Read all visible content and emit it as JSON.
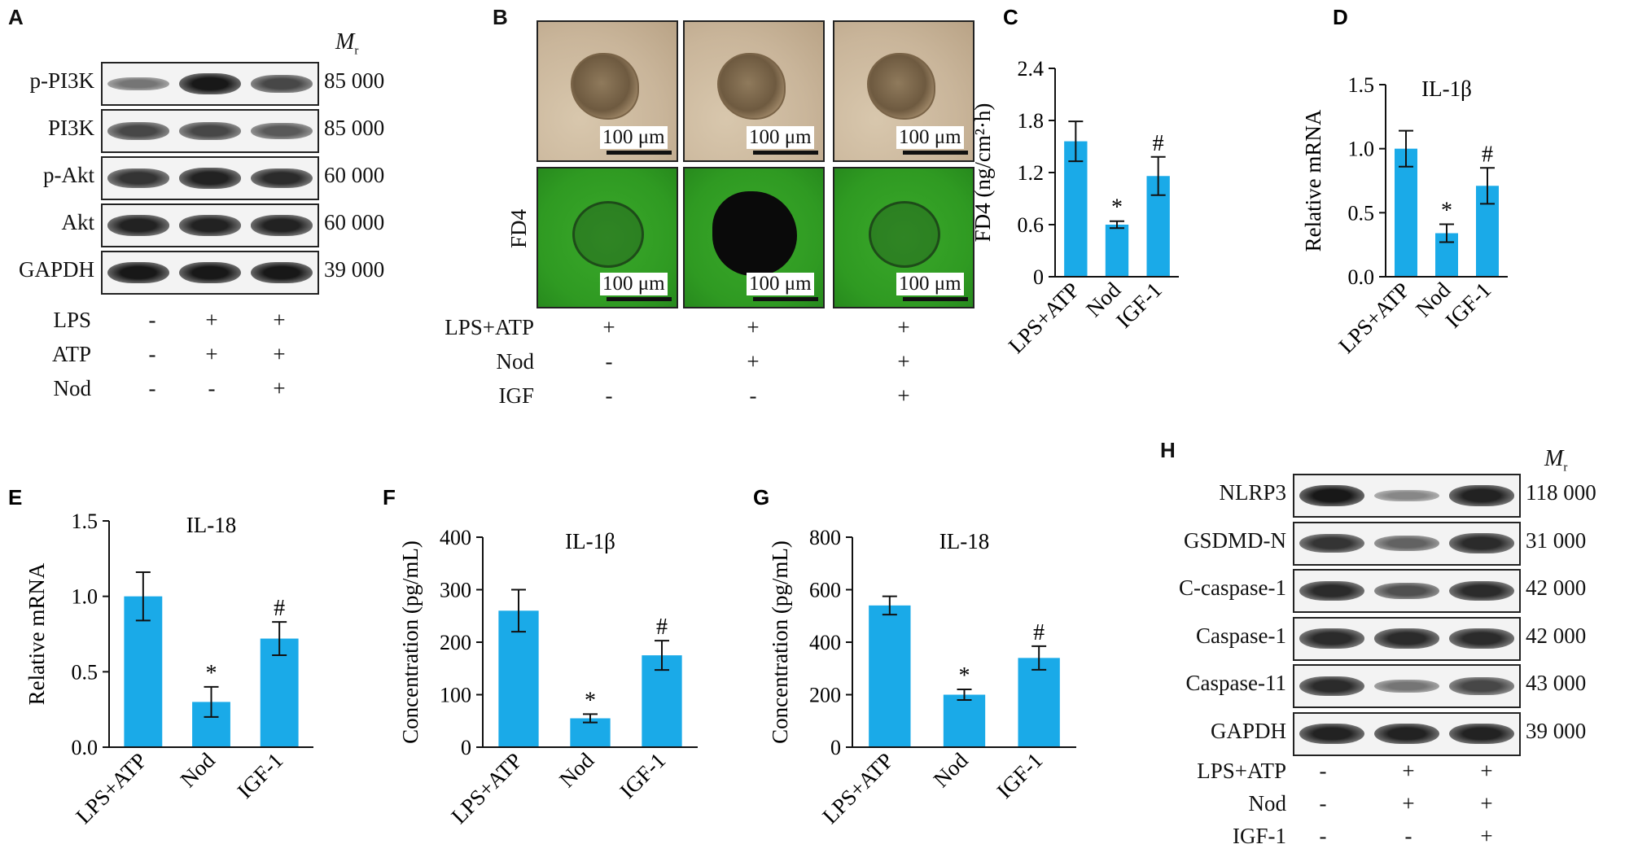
{
  "panels": {
    "A": {
      "letter": "A",
      "mr_label": "M",
      "mr_sub": "r",
      "blots": [
        {
          "label": "p-PI3K",
          "mw": "85 000",
          "intensity": [
            0.45,
            0.95,
            0.7
          ]
        },
        {
          "label": "PI3K",
          "mw": "85 000",
          "intensity": [
            0.7,
            0.7,
            0.6
          ]
        },
        {
          "label": "p-Akt",
          "mw": "60 000",
          "intensity": [
            0.8,
            0.9,
            0.85
          ]
        },
        {
          "label": "Akt",
          "mw": "60 000",
          "intensity": [
            0.9,
            0.9,
            0.9
          ]
        },
        {
          "label": "GAPDH",
          "mw": "39 000",
          "intensity": [
            0.95,
            0.95,
            0.95
          ]
        }
      ],
      "treatments": [
        {
          "label": "LPS",
          "signs": [
            "-",
            "+",
            "+"
          ]
        },
        {
          "label": "ATP",
          "signs": [
            "-",
            "+",
            "+"
          ]
        },
        {
          "label": "Nod",
          "signs": [
            "-",
            "-",
            "+"
          ]
        }
      ]
    },
    "B": {
      "letter": "B",
      "row_label": "FD4",
      "scale": "100 μm",
      "treatments": [
        {
          "label": "LPS+ATP",
          "signs": [
            "+",
            "+",
            "+"
          ]
        },
        {
          "label": "Nod",
          "signs": [
            "-",
            "+",
            "+"
          ]
        },
        {
          "label": "IGF",
          "signs": [
            "-",
            "-",
            "+"
          ]
        }
      ],
      "colors": {
        "brightfield": "#c9b59a",
        "fluorescence": "#2f9a22"
      }
    },
    "H": {
      "letter": "H",
      "mr_label": "M",
      "mr_sub": "r",
      "blots": [
        {
          "label": "NLRP3",
          "mw": "118 000",
          "intensity": [
            0.95,
            0.35,
            0.9
          ]
        },
        {
          "label": "GSDMD-N",
          "mw": "31 000",
          "intensity": [
            0.8,
            0.55,
            0.85
          ]
        },
        {
          "label": "C-caspase-1",
          "mw": "42 000",
          "intensity": [
            0.85,
            0.65,
            0.85
          ]
        },
        {
          "label": "Caspase-1",
          "mw": "42 000",
          "intensity": [
            0.85,
            0.85,
            0.85
          ]
        },
        {
          "label": "Caspase-11",
          "mw": "43 000",
          "intensity": [
            0.85,
            0.45,
            0.7
          ]
        },
        {
          "label": "GAPDH",
          "mw": "39 000",
          "intensity": [
            0.9,
            0.9,
            0.9
          ]
        }
      ],
      "treatments": [
        {
          "label": "LPS+ATP",
          "signs": [
            "-",
            "+",
            "+"
          ]
        },
        {
          "label": "Nod",
          "signs": [
            "-",
            "+",
            "+"
          ]
        },
        {
          "label": "IGF-1",
          "signs": [
            "-",
            "-",
            "+"
          ]
        }
      ]
    }
  },
  "chart_data": [
    {
      "id": "C",
      "letter": "C",
      "type": "bar",
      "title": "",
      "categories": [
        "LPS+ATP",
        "Nod",
        "IGF-1"
      ],
      "values": [
        1.56,
        0.6,
        1.16
      ],
      "errors": [
        0.23,
        0.04,
        0.22
      ],
      "marks": [
        "",
        "*",
        "#"
      ],
      "ylabel": "FD4 (ng/cm²·h)",
      "ylim": [
        0,
        2.4
      ],
      "yticks": [
        "0",
        "0.6",
        "1.2",
        "1.8",
        "2.4"
      ],
      "ytick_values": [
        0,
        0.6,
        1.2,
        1.8,
        2.4
      ],
      "bar_color": "#1aaae8"
    },
    {
      "id": "D",
      "letter": "D",
      "type": "bar",
      "title": "IL-1β",
      "categories": [
        "LPS+ATP",
        "Nod",
        "IGF-1"
      ],
      "values": [
        1.0,
        0.34,
        0.71
      ],
      "errors": [
        0.14,
        0.07,
        0.14
      ],
      "marks": [
        "",
        "*",
        "#"
      ],
      "ylabel": "Relative mRNA",
      "ylim": [
        0,
        1.5
      ],
      "yticks": [
        "0.0",
        "0.5",
        "1.0",
        "1.5"
      ],
      "ytick_values": [
        0,
        0.5,
        1.0,
        1.5
      ],
      "bar_color": "#1aaae8"
    },
    {
      "id": "E",
      "letter": "E",
      "type": "bar",
      "title": "IL-18",
      "categories": [
        "LPS+ATP",
        "Nod",
        "IGF-1"
      ],
      "values": [
        1.0,
        0.3,
        0.72
      ],
      "errors": [
        0.16,
        0.1,
        0.11
      ],
      "marks": [
        "",
        "*",
        "#"
      ],
      "ylabel": "Relative mRNA",
      "ylim": [
        0,
        1.5
      ],
      "yticks": [
        "0.0",
        "0.5",
        "1.0",
        "1.5"
      ],
      "ytick_values": [
        0,
        0.5,
        1.0,
        1.5
      ],
      "bar_color": "#1aaae8"
    },
    {
      "id": "F",
      "letter": "F",
      "type": "bar",
      "title": "IL-1β",
      "categories": [
        "LPS+ATP",
        "Nod",
        "IGF-1"
      ],
      "values": [
        260,
        55,
        175
      ],
      "errors": [
        40,
        8,
        28
      ],
      "marks": [
        "",
        "*",
        "#"
      ],
      "ylabel": "Concentration (pg/mL)",
      "ylim": [
        0,
        400
      ],
      "yticks": [
        "0",
        "100",
        "200",
        "300",
        "400"
      ],
      "ytick_values": [
        0,
        100,
        200,
        300,
        400
      ],
      "bar_color": "#1aaae8"
    },
    {
      "id": "G",
      "letter": "G",
      "type": "bar",
      "title": "IL-18",
      "categories": [
        "LPS+ATP",
        "Nod",
        "IGF-1"
      ],
      "values": [
        540,
        200,
        340
      ],
      "errors": [
        35,
        20,
        45
      ],
      "marks": [
        "",
        "*",
        "#"
      ],
      "ylabel": "Concentration (pg/mL)",
      "ylim": [
        0,
        800
      ],
      "yticks": [
        "0",
        "200",
        "400",
        "600",
        "800"
      ],
      "ytick_values": [
        0,
        200,
        400,
        600,
        800
      ],
      "bar_color": "#1aaae8"
    }
  ]
}
